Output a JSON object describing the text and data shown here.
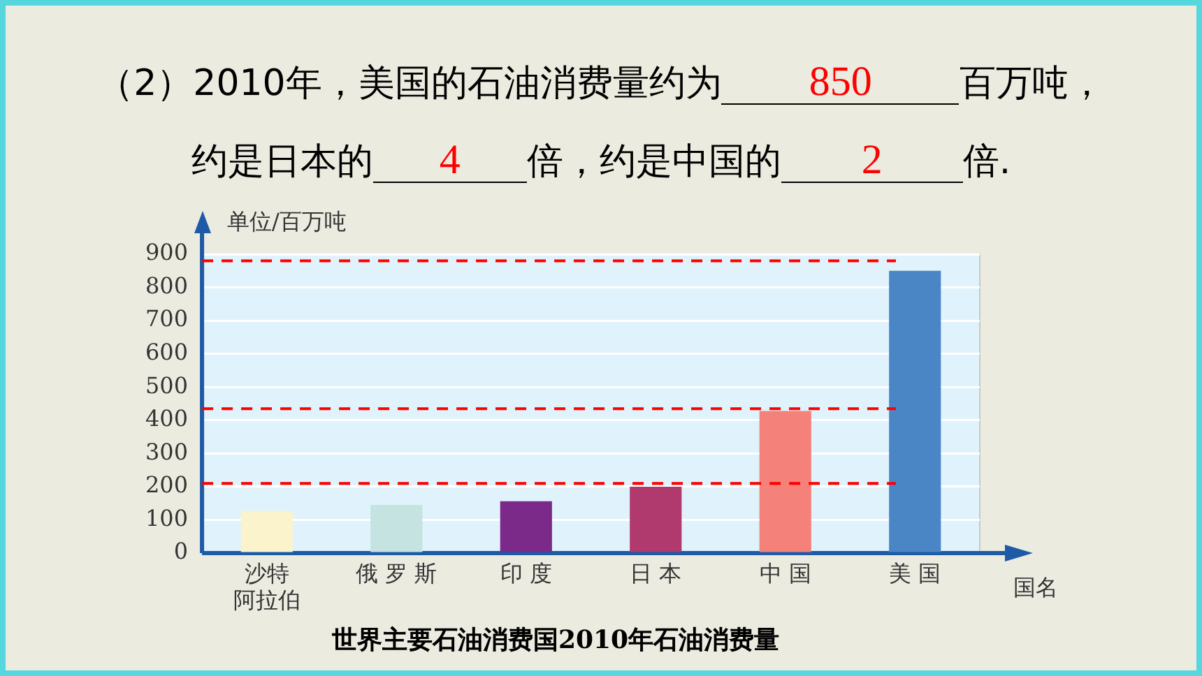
{
  "chart_data": {
    "type": "bar",
    "title": "世界主要石油消费国2010年石油消费量",
    "xlabel": "国名",
    "ylabel": "单位/百万吨",
    "annotations": [
      "（2）2010年，美国的石油消费量约为",
      "850",
      "百万吨，",
      "约是日本的",
      "4",
      "倍，约是中国的",
      "2",
      "倍."
    ],
    "categories": [
      "沙特阿拉伯",
      "俄罗斯",
      "印度",
      "日本",
      "中国",
      "美国"
    ],
    "values": [
      127,
      145,
      156,
      200,
      428,
      850
    ],
    "colors": [
      "#faf3cc",
      "#c5e3e0",
      "#7b2a8a",
      "#b03a6e",
      "#f4827a",
      "#4a86c6"
    ],
    "ylim": [
      0,
      900
    ],
    "yticks": [
      0,
      100,
      200,
      300,
      400,
      500,
      600,
      700,
      800,
      900
    ],
    "grid": "y",
    "ref_lines": [
      {
        "axis": "y",
        "value": 880,
        "color": "#ff0000",
        "line_style": "dashed"
      },
      {
        "axis": "y",
        "value": 435,
        "color": "#ff0000",
        "line_style": "dashed"
      },
      {
        "axis": "y",
        "value": 210,
        "color": "#ff0000",
        "line_style": "dashed"
      }
    ]
  }
}
